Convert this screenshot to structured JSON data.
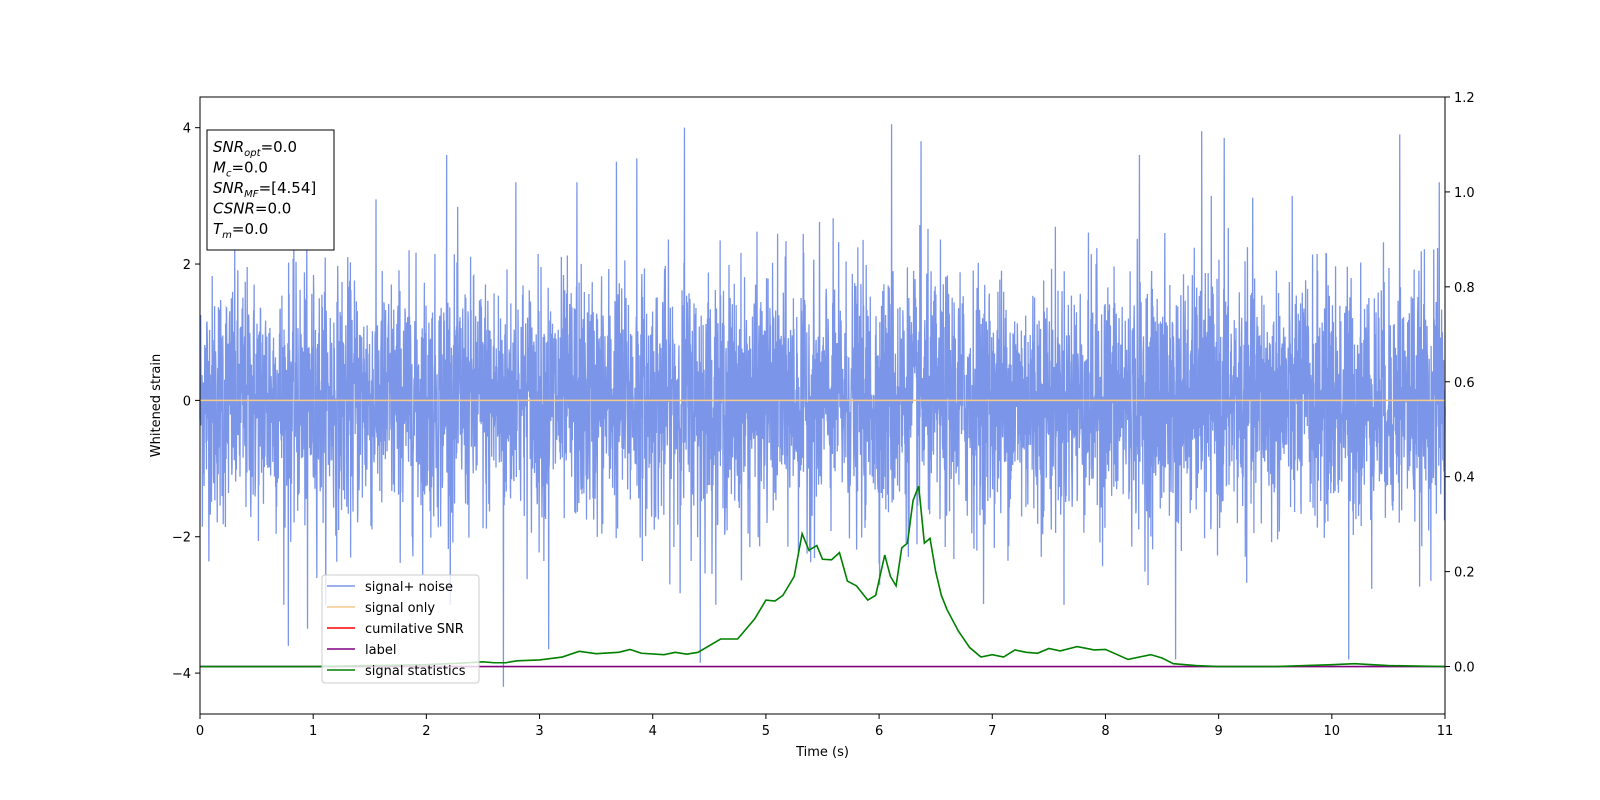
{
  "chart_data": {
    "type": "line",
    "xlabel": "Time (s)",
    "ylabel": "Whitened strain",
    "xlim": [
      0,
      11
    ],
    "ylim": [
      -4.6,
      4.45
    ],
    "y2lim": [
      -0.1,
      1.2
    ],
    "x_ticks": [
      "0",
      "1",
      "2",
      "3",
      "4",
      "5",
      "6",
      "7",
      "8",
      "9",
      "10",
      "11"
    ],
    "y_ticks": [
      "−4",
      "−2",
      "0",
      "2",
      "4"
    ],
    "y2_ticks": [
      "0.0",
      "0.2",
      "0.4",
      "0.6",
      "0.8",
      "1.0",
      "1.2"
    ],
    "grid": false,
    "legend_position": "lower-left",
    "legend": [
      {
        "label": "signal+ noise",
        "color": "#7b96e8"
      },
      {
        "label": "signal only",
        "color": "#f7c98a"
      },
      {
        "label": "cumilative SNR",
        "color": "#ff0000"
      },
      {
        "label": "label",
        "color": "#800080"
      },
      {
        "label": "signal statistics",
        "color": "#008000"
      }
    ],
    "noise": {
      "description_bands": "whitened gaussian noise, roughly within [-2.5, 2.5]",
      "t_start": 0,
      "t_end": 11,
      "sigma": 0.9,
      "peak_spikes": [
        {
          "x": 0.78,
          "y": -3.6
        },
        {
          "x": 0.95,
          "y": -3.35
        },
        {
          "x": 2.18,
          "y": 3.6
        },
        {
          "x": 2.68,
          "y": -4.2
        },
        {
          "x": 2.79,
          "y": 3.2
        },
        {
          "x": 3.08,
          "y": -3.65
        },
        {
          "x": 3.33,
          "y": 3.2
        },
        {
          "x": 3.68,
          "y": 3.5
        },
        {
          "x": 3.86,
          "y": 3.55
        },
        {
          "x": 4.28,
          "y": 4.0
        },
        {
          "x": 4.42,
          "y": -3.85
        },
        {
          "x": 6.11,
          "y": 4.05
        },
        {
          "x": 6.37,
          "y": 3.8
        },
        {
          "x": 8.3,
          "y": 3.6
        },
        {
          "x": 8.62,
          "y": -3.8
        },
        {
          "x": 8.85,
          "y": 3.95
        },
        {
          "x": 9.05,
          "y": 3.85
        },
        {
          "x": 10.15,
          "y": -3.8
        },
        {
          "x": 10.6,
          "y": 3.9
        },
        {
          "x": 10.95,
          "y": 3.2
        }
      ]
    },
    "signal_only": {
      "t": [
        0,
        11
      ],
      "y": [
        0,
        0
      ]
    },
    "label_line": {
      "t": [
        0,
        11
      ],
      "y": [
        0,
        0
      ]
    },
    "signal_statistics": {
      "x": [
        0,
        0.5,
        1.0,
        1.5,
        2.0,
        2.3,
        2.5,
        2.6,
        2.7,
        2.8,
        3.0,
        3.2,
        3.35,
        3.5,
        3.7,
        3.8,
        3.9,
        4.1,
        4.2,
        4.3,
        4.4,
        4.6,
        4.75,
        4.8,
        4.9,
        5.0,
        5.08,
        5.15,
        5.25,
        5.32,
        5.38,
        5.45,
        5.5,
        5.58,
        5.65,
        5.72,
        5.8,
        5.9,
        5.97,
        6.05,
        6.1,
        6.15,
        6.2,
        6.25,
        6.3,
        6.35,
        6.4,
        6.45,
        6.5,
        6.55,
        6.6,
        6.7,
        6.8,
        6.9,
        7.0,
        7.1,
        7.2,
        7.3,
        7.4,
        7.5,
        7.6,
        7.75,
        7.9,
        8.0,
        8.2,
        8.4,
        8.5,
        8.6,
        8.8,
        9.0,
        9.5,
        10.0,
        10.2,
        10.5,
        11.0
      ],
      "y": [
        0.0,
        0.0,
        0.0,
        0.002,
        0.004,
        0.007,
        0.01,
        0.008,
        0.008,
        0.012,
        0.014,
        0.02,
        0.032,
        0.027,
        0.03,
        0.036,
        0.028,
        0.025,
        0.03,
        0.026,
        0.03,
        0.058,
        0.058,
        0.072,
        0.1,
        0.14,
        0.138,
        0.15,
        0.19,
        0.28,
        0.245,
        0.255,
        0.226,
        0.225,
        0.24,
        0.18,
        0.17,
        0.14,
        0.15,
        0.235,
        0.19,
        0.17,
        0.25,
        0.26,
        0.35,
        0.38,
        0.26,
        0.27,
        0.2,
        0.15,
        0.12,
        0.075,
        0.04,
        0.02,
        0.025,
        0.02,
        0.035,
        0.03,
        0.028,
        0.038,
        0.033,
        0.042,
        0.035,
        0.036,
        0.015,
        0.025,
        0.018,
        0.006,
        0.002,
        0.0,
        0.0,
        0.004,
        0.006,
        0.002,
        0.0
      ]
    },
    "info_box": [
      {
        "main": "SNR",
        "sub": "opt",
        "value": "=0.0"
      },
      {
        "main": "M",
        "sub": "c",
        "value": "=0.0"
      },
      {
        "main": "SNR",
        "sub": "MF",
        "value": "=[4.54]"
      },
      {
        "main": "CSNR",
        "sub": "",
        "value": "=0.0"
      },
      {
        "main": "T",
        "sub": "m",
        "value": "=0.0"
      }
    ]
  }
}
